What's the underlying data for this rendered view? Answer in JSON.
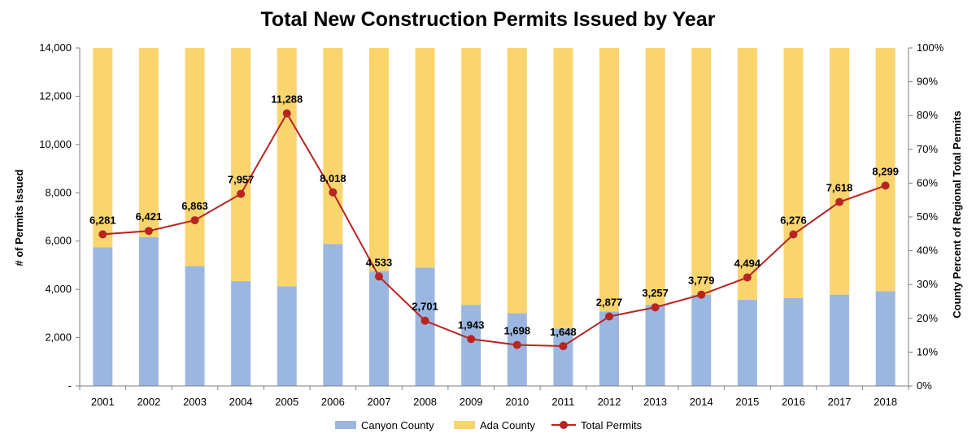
{
  "chart_data": {
    "type": "bar",
    "stacked_percent": true,
    "title": "Total New Construction Permits Issued by Year",
    "ylabel": "# of Permits Issued",
    "y2label": "County Percent of Regional Total Permits",
    "ylim": [
      0,
      14000
    ],
    "yticks": [
      "-",
      "2,000",
      "4,000",
      "6,000",
      "8,000",
      "10,000",
      "12,000",
      "14,000"
    ],
    "y2lim": [
      0,
      100
    ],
    "y2ticks": [
      "0%",
      "10%",
      "20%",
      "30%",
      "40%",
      "50%",
      "60%",
      "70%",
      "80%",
      "90%",
      "100%"
    ],
    "categories": [
      "2001",
      "2002",
      "2003",
      "2004",
      "2005",
      "2006",
      "2007",
      "2008",
      "2009",
      "2010",
      "2011",
      "2012",
      "2013",
      "2014",
      "2015",
      "2016",
      "2017",
      "2018"
    ],
    "series": [
      {
        "name": "Canyon County",
        "kind": "bar",
        "axis": "right",
        "unit": "percent",
        "values": [
          41,
          44,
          35.5,
          31,
          29.5,
          42,
          34,
          35,
          24,
          21.5,
          17,
          22,
          24,
          27,
          25.5,
          26,
          27,
          28
        ]
      },
      {
        "name": "Ada County",
        "kind": "bar",
        "axis": "right",
        "unit": "percent",
        "values": [
          59,
          56,
          64.5,
          69,
          70.5,
          58,
          66,
          65,
          76,
          78.5,
          83,
          78,
          76,
          73,
          74.5,
          74,
          73,
          72
        ]
      },
      {
        "name": "Total Permits",
        "kind": "line",
        "axis": "left",
        "values": [
          6281,
          6421,
          6863,
          7957,
          11288,
          8018,
          4533,
          2701,
          1943,
          1698,
          1648,
          2877,
          3257,
          3779,
          4494,
          6276,
          7618,
          8299
        ],
        "labels": [
          "6,281",
          "6,421",
          "6,863",
          "7,957",
          "11,288",
          "8,018",
          "4,533",
          "2,701",
          "1,943",
          "1,698",
          "1,648",
          "2,877",
          "3,257",
          "3,779",
          "4,494",
          "6,276",
          "7,618",
          "8,299"
        ]
      }
    ],
    "legend": {
      "position": "bottom",
      "entries": [
        "Canyon County",
        "Ada County",
        "Total Permits"
      ]
    },
    "grid": false,
    "colors": {
      "canyon": "#9bb7e0",
      "ada": "#fad56e",
      "line": "#b82421",
      "axis": "#7f7f7f"
    }
  }
}
